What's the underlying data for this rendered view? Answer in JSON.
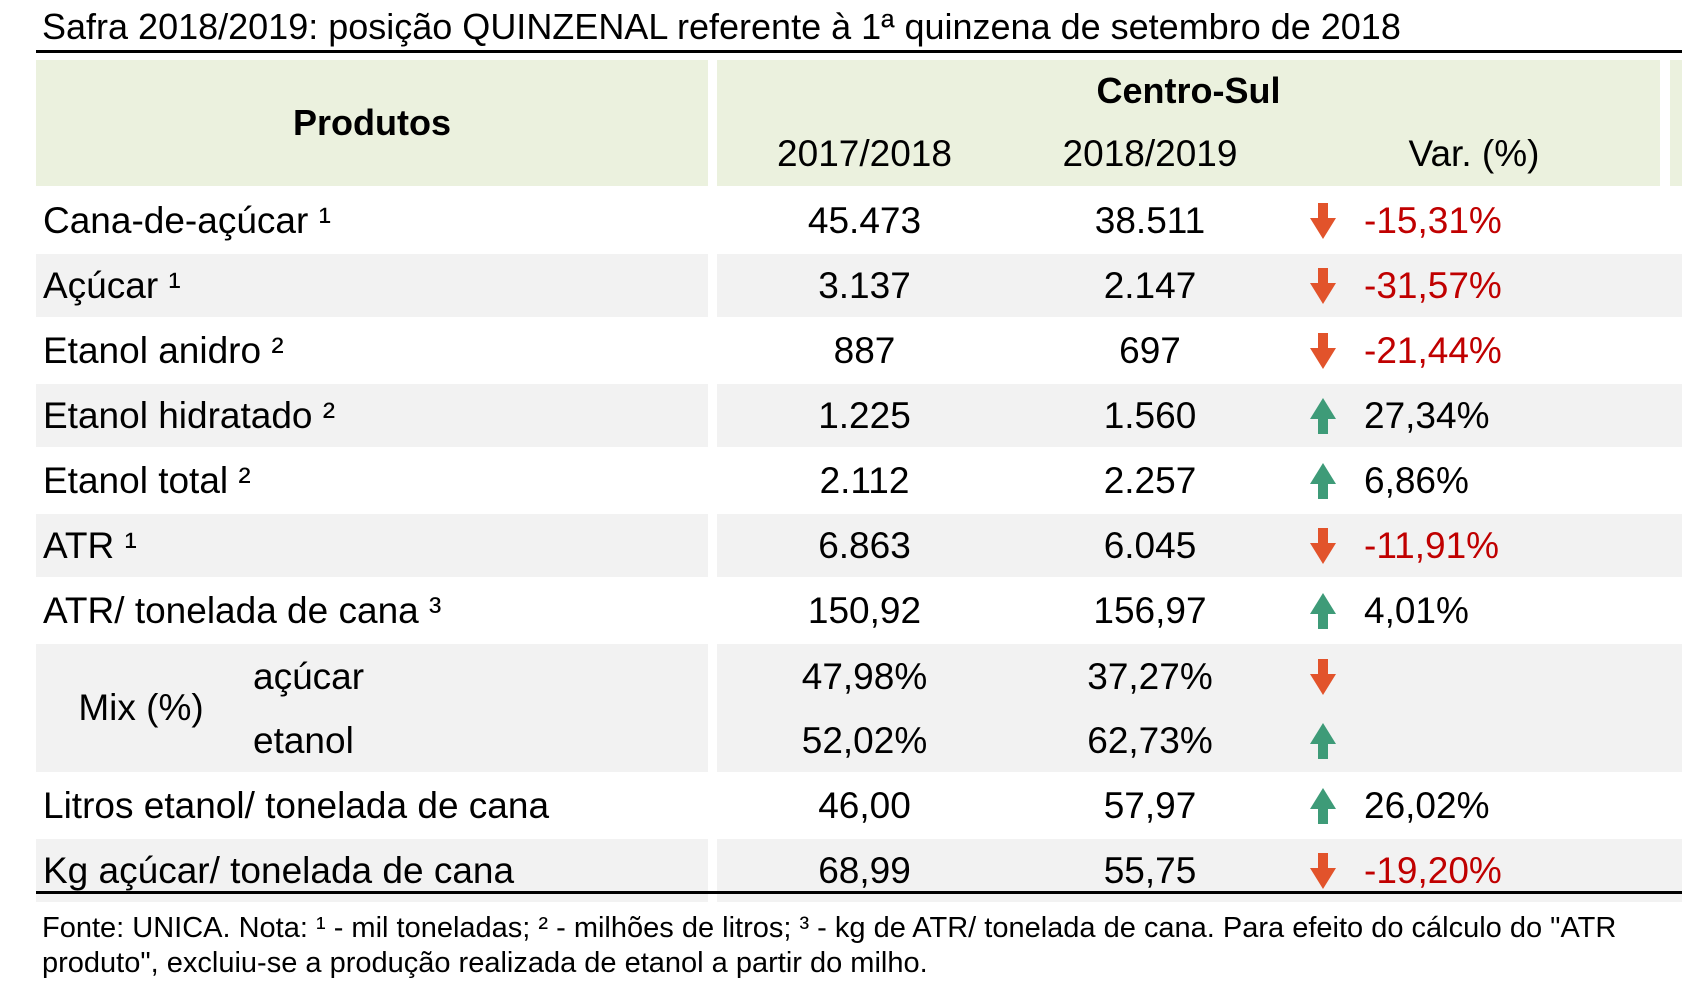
{
  "title": "Safra 2018/2019: posição QUINZENAL referente à 1ª quinzena de setembro de 2018",
  "header": {
    "products": "Produtos",
    "region": "Centro-Sul",
    "col_prev": "2017/2018",
    "col_curr": "2018/2019",
    "col_var": "Var. (%)"
  },
  "rows": [
    {
      "label": "Cana-de-açúcar ¹",
      "prev": "45.473",
      "curr": "38.511",
      "var": "-15,31%",
      "direction": "down"
    },
    {
      "label": "Açúcar ¹",
      "prev": "3.137",
      "curr": "2.147",
      "var": "-31,57%",
      "direction": "down"
    },
    {
      "label": "Etanol anidro ²",
      "prev": "887",
      "curr": "697",
      "var": "-21,44%",
      "direction": "down"
    },
    {
      "label": "Etanol hidratado ²",
      "prev": "1.225",
      "curr": "1.560",
      "var": "27,34%",
      "direction": "up"
    },
    {
      "label": "Etanol total ²",
      "prev": "2.112",
      "curr": "2.257",
      "var": "6,86%",
      "direction": "up"
    },
    {
      "label": "ATR ¹",
      "prev": "6.863",
      "curr": "6.045",
      "var": "-11,91%",
      "direction": "down"
    },
    {
      "label": "ATR/ tonelada de cana ³",
      "prev": "150,92",
      "curr": "156,97",
      "var": "4,01%",
      "direction": "up"
    }
  ],
  "mix": {
    "label": "Mix (%)",
    "sugar": {
      "label": "açúcar",
      "prev": "47,98%",
      "curr": "37,27%",
      "direction": "down"
    },
    "ethanol": {
      "label": "etanol",
      "prev": "52,02%",
      "curr": "62,73%",
      "direction": "up"
    }
  },
  "rows_after": [
    {
      "label": "Litros etanol/ tonelada de cana",
      "prev": "46,00",
      "curr": "57,97",
      "var": "26,02%",
      "direction": "up"
    },
    {
      "label": "Kg açúcar/ tonelada de cana",
      "prev": "68,99",
      "curr": "55,75",
      "var": "-19,20%",
      "direction": "down"
    }
  ],
  "note": "Fonte: UNICA. Nota: ¹ - mil toneladas; ² - milhões de litros; ³ - kg de ATR/ tonelada de cana. Para efeito do cálculo do \"ATR produto\", excluiu-se a produção realizada de etanol a partir do milho.",
  "colors": {
    "header_bg": "#ebf1de",
    "stripe_bg": "#f2f2f2",
    "down_arrow": "#e2532b",
    "up_arrow": "#3e9b78",
    "negative_text": "#c00000"
  },
  "icons": {
    "down": "arrow-down-icon",
    "up": "arrow-up-icon"
  }
}
